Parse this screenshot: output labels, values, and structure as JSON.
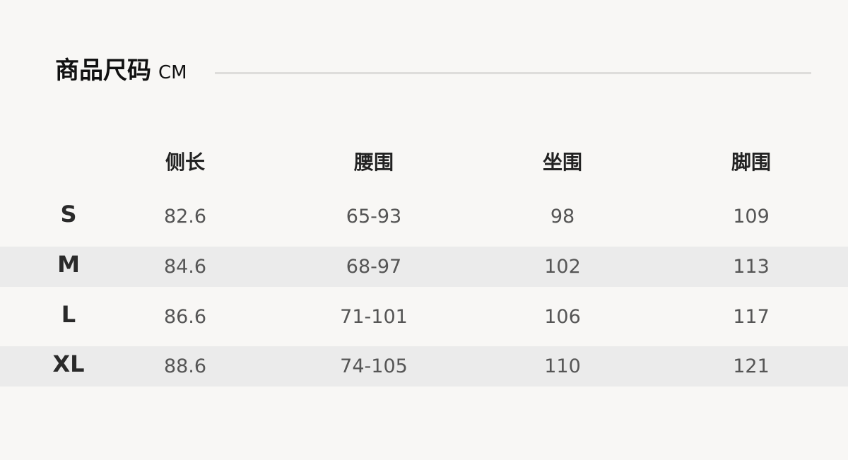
{
  "title": "商品尺码",
  "unit": "CM",
  "columns": [
    "侧长",
    "腰围",
    "坐围",
    "脚围"
  ],
  "rows": [
    {
      "size": "S",
      "values": [
        "82.6",
        "65-93",
        "98",
        "109"
      ]
    },
    {
      "size": "M",
      "values": [
        "84.6",
        "68-97",
        "102",
        "113"
      ]
    },
    {
      "size": "L",
      "values": [
        "86.6",
        "71-101",
        "106",
        "117"
      ]
    },
    {
      "size": "XL",
      "values": [
        "88.6",
        "74-105",
        "110",
        "121"
      ]
    }
  ],
  "colors": {
    "background": "#f8f7f5",
    "stripe": "#ebebeb"
  }
}
